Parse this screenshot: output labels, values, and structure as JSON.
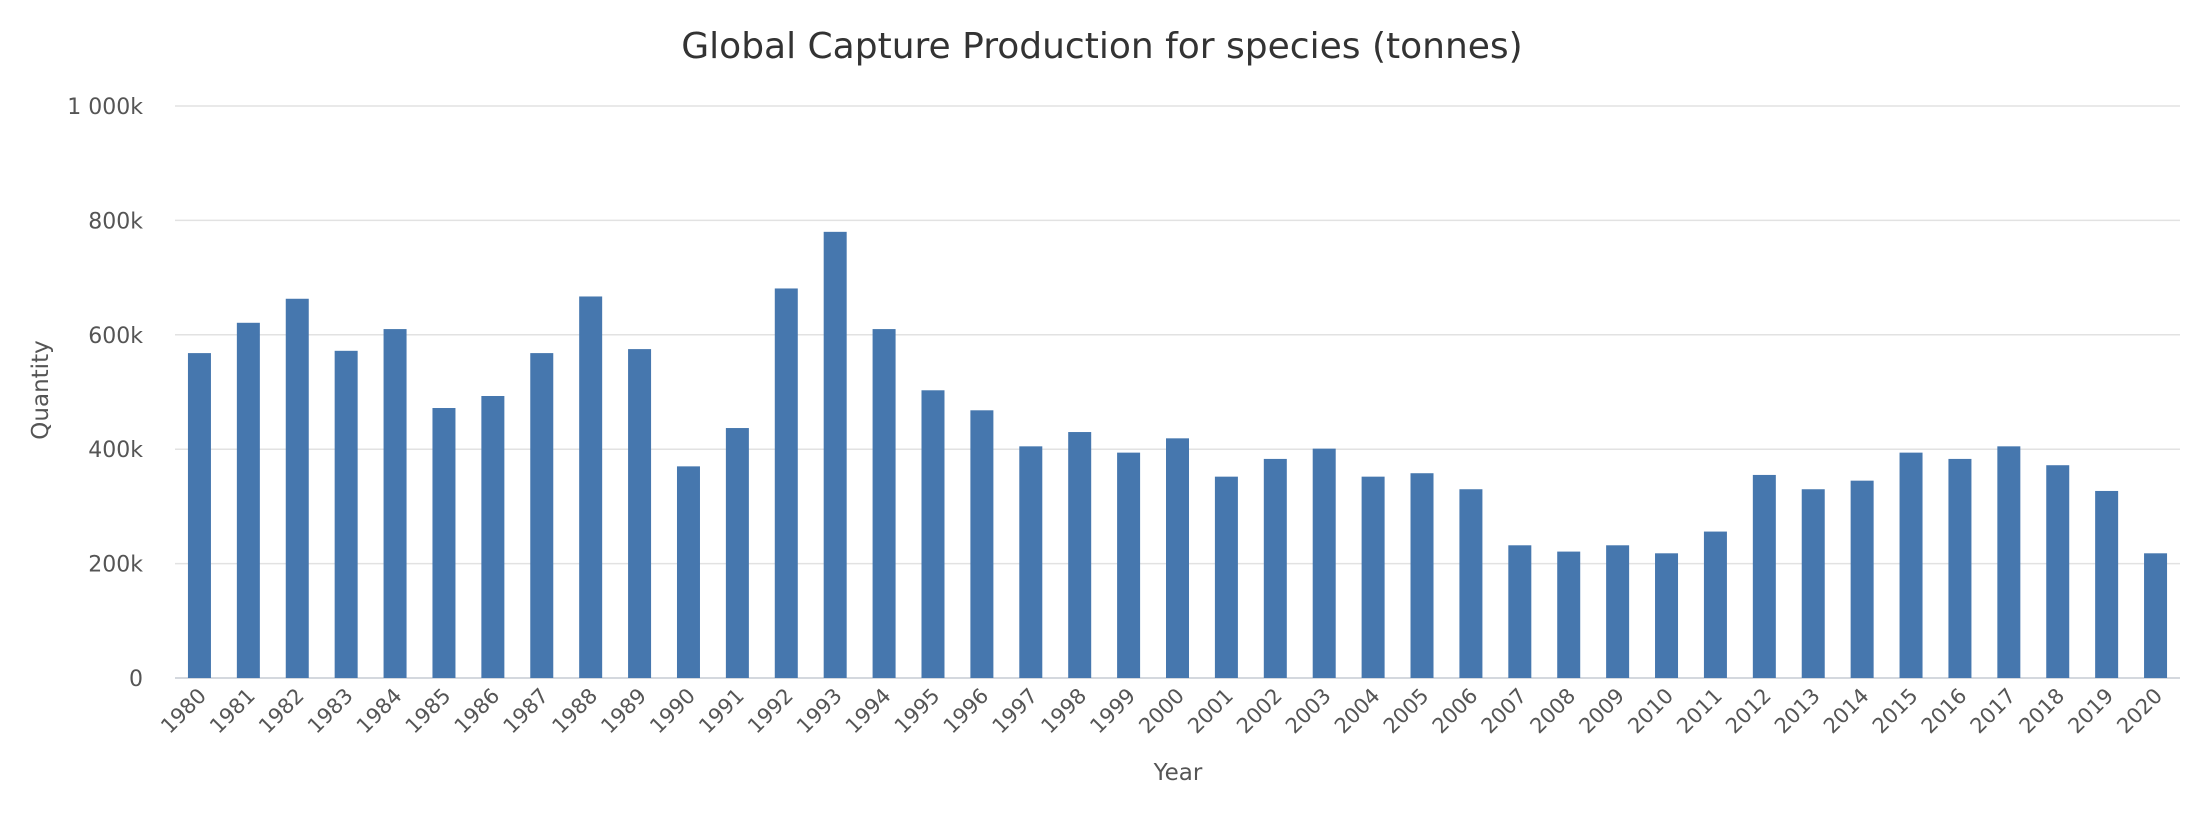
{
  "chart_data": {
    "type": "bar",
    "title": "Global Capture Production for species (tonnes)",
    "xlabel": "Year",
    "ylabel": "Quantity",
    "ylim": [
      0,
      1000000
    ],
    "y_ticks": [
      0,
      200000,
      400000,
      600000,
      800000,
      1000000
    ],
    "y_tick_labels": [
      "0",
      "200k",
      "400k",
      "600k",
      "800k",
      "1 000k"
    ],
    "grid": true,
    "legend": false,
    "bar_color": "#4677ae",
    "categories": [
      "1980",
      "1981",
      "1982",
      "1983",
      "1984",
      "1985",
      "1986",
      "1987",
      "1988",
      "1989",
      "1990",
      "1991",
      "1992",
      "1993",
      "1994",
      "1995",
      "1996",
      "1997",
      "1998",
      "1999",
      "2000",
      "2001",
      "2002",
      "2003",
      "2004",
      "2005",
      "2006",
      "2007",
      "2008",
      "2009",
      "2010",
      "2011",
      "2012",
      "2013",
      "2014",
      "2015",
      "2016",
      "2017",
      "2018",
      "2019",
      "2020"
    ],
    "values": [
      568000,
      621000,
      663000,
      572000,
      610000,
      472000,
      493000,
      568000,
      667000,
      575000,
      370000,
      437000,
      681000,
      780000,
      610000,
      503000,
      468000,
      405000,
      430000,
      394000,
      419000,
      352000,
      383000,
      401000,
      352000,
      358000,
      330000,
      232000,
      221000,
      232000,
      218000,
      256000,
      355000,
      330000,
      345000,
      394000,
      383000,
      405000,
      372000,
      327000,
      218000
    ]
  }
}
